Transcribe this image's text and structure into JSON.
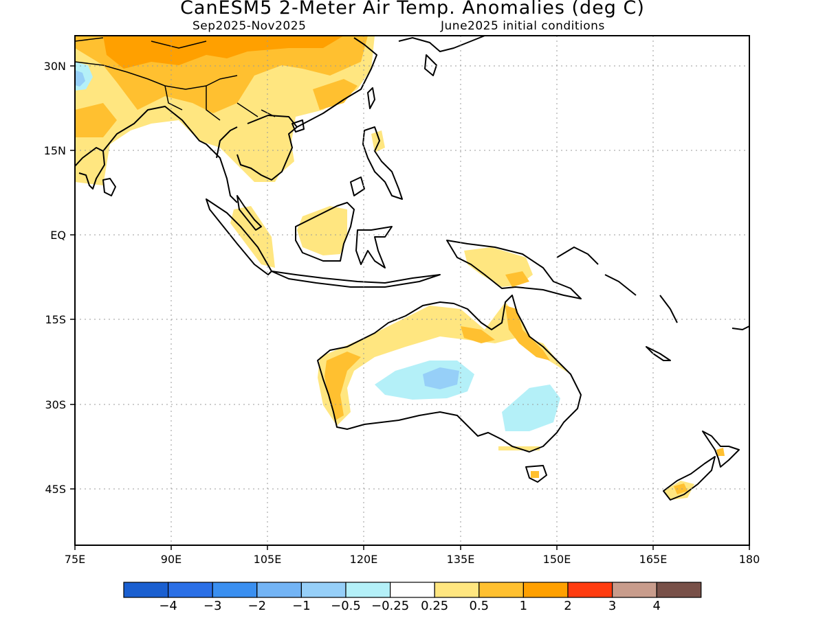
{
  "title": "CanESM5 2-Meter Air Temp. Anomalies (deg C)",
  "period": "Sep2025-Nov2025",
  "init": "June2025 initial conditions",
  "lat_ticks": [
    "30N",
    "15N",
    "EQ",
    "15S",
    "30S",
    "45S"
  ],
  "lon_ticks": [
    "75E",
    "90E",
    "105E",
    "120E",
    "135E",
    "150E",
    "165E",
    "180"
  ],
  "colorbar": {
    "colors": [
      "#1a5fd0",
      "#2a6fe6",
      "#3a8ff0",
      "#73b4f5",
      "#96cff8",
      "#b4f0f8",
      "#ffffff",
      "#ffe680",
      "#ffc030",
      "#ffa000",
      "#ff3c10",
      "#c89c8c",
      "#785048"
    ],
    "labels": [
      "-4",
      "-3",
      "-2",
      "-1",
      "-0.5",
      "-0.25",
      "0.25",
      "0.5",
      "1",
      "2",
      "3",
      "4"
    ]
  }
}
